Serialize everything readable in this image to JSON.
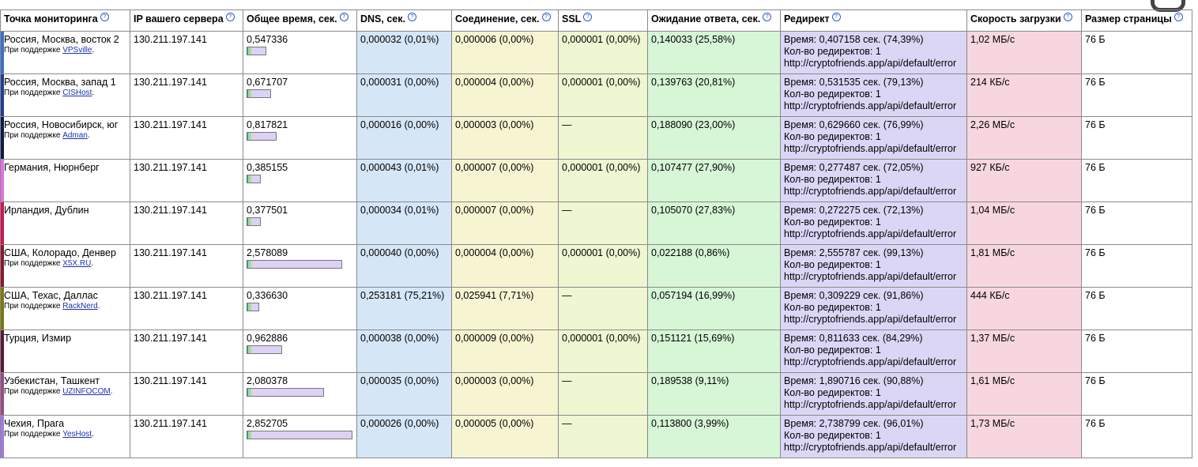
{
  "headers": {
    "point": "Точка мониторинга",
    "ip": "IP вашего сервера",
    "total": "Общее время, сек.",
    "dns": "DNS, сек.",
    "conn": "Соединение, сек.",
    "ssl": "SSL",
    "wait": "Ожидание ответа, сек.",
    "redirect": "Редирект",
    "speed": "Скорость загрузки",
    "size": "Размер страницы"
  },
  "help_glyph": "?",
  "sponsor_prefix": "При поддержке",
  "redirect_labels": {
    "time_prefix": "Время:",
    "count_prefix": "Кол-во редиректов:"
  },
  "rows": [
    {
      "location": "Россия, Москва, восток 2",
      "sponsor": "VPSville",
      "stripe": "#3a6fc8",
      "ip": "130.211.197.141",
      "total": "0,547336",
      "total_fraction": 0.19,
      "dns": "0,000032 (0,01%)",
      "conn": "0,000006 (0,00%)",
      "ssl": "0,000001 (0,00%)",
      "wait": "0,140033 (25,58%)",
      "redirect_time": "0,407158 сек. (74,39%)",
      "redirect_count": "1",
      "redirect_url": "http://cryptofriends.app/api/default/error",
      "speed": "1,02 МБ/с",
      "size": "76 Б"
    },
    {
      "location": "Россия, Москва, запад 1",
      "sponsor": "CISHost",
      "stripe": "#1f3f8f",
      "ip": "130.211.197.141",
      "total": "0,671707",
      "total_fraction": 0.235,
      "dns": "0,000031 (0,00%)",
      "conn": "0,000004 (0,00%)",
      "ssl": "0,000001 (0,00%)",
      "wait": "0,139763 (20,81%)",
      "redirect_time": "0,531535 сек. (79,13%)",
      "redirect_count": "1",
      "redirect_url": "http://cryptofriends.app/api/default/error",
      "speed": "214 КБ/с",
      "size": "76 Б"
    },
    {
      "location": "Россия, Новосибирск, юг",
      "sponsor": "Adman",
      "stripe": "#0d1a4a",
      "ip": "130.211.197.141",
      "total": "0,817821",
      "total_fraction": 0.287,
      "dns": "0,000016 (0,00%)",
      "conn": "0,000003 (0,00%)",
      "ssl": "—",
      "wait": "0,188090 (23,00%)",
      "redirect_time": "0,629660 сек. (76,99%)",
      "redirect_count": "1",
      "redirect_url": "http://cryptofriends.app/api/default/error",
      "speed": "2,26 МБ/с",
      "size": "76 Б"
    },
    {
      "location": "Германия, Нюрнберг",
      "sponsor": "",
      "stripe": "#e070e0",
      "ip": "130.211.197.141",
      "total": "0,385155",
      "total_fraction": 0.135,
      "dns": "0,000043 (0,01%)",
      "conn": "0,000007 (0,00%)",
      "ssl": "0,000001 (0,00%)",
      "wait": "0,107477 (27,90%)",
      "redirect_time": "0,277487 сек. (72,05%)",
      "redirect_count": "1",
      "redirect_url": "http://cryptofriends.app/api/default/error",
      "speed": "927 КБ/с",
      "size": "76 Б"
    },
    {
      "location": "Ирландия, Дублин",
      "sponsor": "",
      "stripe": "#c81850",
      "ip": "130.211.197.141",
      "total": "0,377501",
      "total_fraction": 0.132,
      "dns": "0,000034 (0,01%)",
      "conn": "0,000007 (0,00%)",
      "ssl": "—",
      "wait": "0,105070 (27,83%)",
      "redirect_time": "0,272275 сек. (72,13%)",
      "redirect_count": "1",
      "redirect_url": "http://cryptofriends.app/api/default/error",
      "speed": "1,04 МБ/с",
      "size": "76 Б"
    },
    {
      "location": "США, Колорадо, Денвер",
      "sponsor": "X5X.RU",
      "stripe": "#8a1830",
      "ip": "130.211.197.141",
      "total": "2,578089",
      "total_fraction": 0.904,
      "dns": "0,000040 (0,00%)",
      "conn": "0,000004 (0,00%)",
      "ssl": "0,000001 (0,00%)",
      "wait": "0,022188 (0,86%)",
      "redirect_time": "2,555787 сек. (99,13%)",
      "redirect_count": "1",
      "redirect_url": "http://cryptofriends.app/api/default/error",
      "speed": "1,81 МБ/с",
      "size": "76 Б"
    },
    {
      "location": "США, Техас, Даллас",
      "sponsor": "RackNerd",
      "stripe": "#7a7a10",
      "ip": "130.211.197.141",
      "total": "0,336630",
      "total_fraction": 0.118,
      "dns": "0,253181 (75,21%)",
      "conn": "0,025941 (7,71%)",
      "ssl": "—",
      "wait": "0,057194 (16,99%)",
      "redirect_time": "0,309229 сек. (91,86%)",
      "redirect_count": "1",
      "redirect_url": "http://cryptofriends.app/api/default/error",
      "speed": "444 КБ/с",
      "size": "76 Б"
    },
    {
      "location": "Турция, Измир",
      "sponsor": "",
      "stripe": "#5a1a3a",
      "ip": "130.211.197.141",
      "total": "0,962886",
      "total_fraction": 0.338,
      "dns": "0,000038 (0,00%)",
      "conn": "0,000009 (0,00%)",
      "ssl": "0,000001 (0,00%)",
      "wait": "0,151121 (15,69%)",
      "redirect_time": "0,811633 сек. (84,29%)",
      "redirect_count": "1",
      "redirect_url": "http://cryptofriends.app/api/default/error",
      "speed": "1,37 МБ/с",
      "size": "76 Б"
    },
    {
      "location": "Узбекистан, Ташкент",
      "sponsor": "UZINFOCOM",
      "stripe": "#9a4a8a",
      "ip": "130.211.197.141",
      "total": "2,080378",
      "total_fraction": 0.729,
      "dns": "0,000035 (0,00%)",
      "conn": "0,000003 (0,00%)",
      "ssl": "—",
      "wait": "0,189538 (9,11%)",
      "redirect_time": "1,890716 сек. (90,88%)",
      "redirect_count": "1",
      "redirect_url": "http://cryptofriends.app/api/default/error",
      "speed": "1,61 МБ/с",
      "size": "76 Б"
    },
    {
      "location": "Чехия, Прага",
      "sponsor": "YesHost",
      "stripe": "#a07ae0",
      "ip": "130.211.197.141",
      "total": "2,852705",
      "total_fraction": 1.0,
      "dns": "0,000026 (0,00%)",
      "conn": "0,000005 (0,00%)",
      "ssl": "—",
      "wait": "0,113800 (3,99%)",
      "redirect_time": "2,738799 сек. (96,01%)",
      "redirect_count": "1",
      "redirect_url": "http://cryptofriends.app/api/default/error",
      "speed": "1,73 МБ/с",
      "size": "76 Б"
    }
  ]
}
